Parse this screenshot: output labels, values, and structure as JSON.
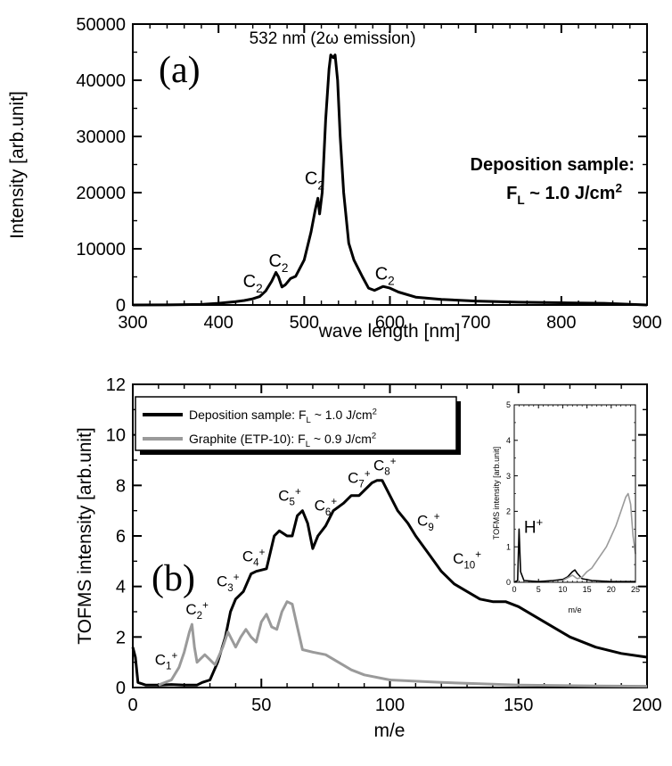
{
  "chart_data": [
    {
      "type": "line",
      "panel_label": "(a)",
      "xlabel": "wave length [nm]",
      "ylabel": "Intensity [arb.unit]",
      "xlim": [
        300,
        900
      ],
      "ylim": [
        0,
        50000
      ],
      "x_ticks": [
        300,
        400,
        500,
        600,
        700,
        800,
        900
      ],
      "y_ticks": [
        0,
        10000,
        20000,
        30000,
        40000,
        50000
      ],
      "grid": false,
      "series": [
        {
          "color": "#000000",
          "points": [
            [
              300,
              0
            ],
            [
              340,
              20
            ],
            [
              380,
              100
            ],
            [
              400,
              300
            ],
            [
              420,
              600
            ],
            [
              430,
              800
            ],
            [
              440,
              1100
            ],
            [
              448,
              1500
            ],
            [
              455,
              2500
            ],
            [
              462,
              4200
            ],
            [
              467,
              5800
            ],
            [
              470,
              5000
            ],
            [
              474,
              3200
            ],
            [
              478,
              3600
            ],
            [
              484,
              4700
            ],
            [
              490,
              5100
            ],
            [
              500,
              8000
            ],
            [
              508,
              13000
            ],
            [
              513,
              17000
            ],
            [
              516,
              19000
            ],
            [
              518,
              16200
            ],
            [
              521,
              20000
            ],
            [
              525,
              33000
            ],
            [
              529,
              42000
            ],
            [
              531,
              44500
            ],
            [
              534,
              44000
            ],
            [
              536,
              44500
            ],
            [
              539,
              40000
            ],
            [
              542,
              30000
            ],
            [
              546,
              20000
            ],
            [
              552,
              11000
            ],
            [
              558,
              8000
            ],
            [
              563,
              6500
            ],
            [
              568,
              5000
            ],
            [
              575,
              3000
            ],
            [
              582,
              2600
            ],
            [
              592,
              3300
            ],
            [
              600,
              3000
            ],
            [
              610,
              2300
            ],
            [
              630,
              1400
            ],
            [
              660,
              1000
            ],
            [
              700,
              700
            ],
            [
              750,
              500
            ],
            [
              800,
              400
            ],
            [
              850,
              300
            ],
            [
              900,
              0
            ]
          ]
        }
      ],
      "annotations": [
        {
          "text": "532 nm (2ω emission)",
          "x": 533,
          "y": 46500
        },
        {
          "text": "C",
          "sub": "2",
          "x": 440,
          "y": 3200
        },
        {
          "text": "C",
          "sub": "2",
          "x": 470,
          "y": 6800
        },
        {
          "text": "C",
          "sub": "2",
          "x": 512,
          "y": 21500
        },
        {
          "text": "C",
          "sub": "2",
          "x": 594,
          "y": 4500
        }
      ],
      "info_lines": [
        {
          "text": "Deposition sample:"
        },
        {
          "text": "F",
          "sub": "L",
          "rest": " ~ 1.0 J/cm",
          "sup": "2"
        }
      ]
    },
    {
      "type": "line",
      "panel_label": "(b)",
      "xlabel": "m/e",
      "ylabel": "TOFMS intensity [arb.unit]",
      "xlim": [
        0,
        200
      ],
      "ylim": [
        0,
        12
      ],
      "x_ticks": [
        0,
        50,
        100,
        150,
        200
      ],
      "y_ticks": [
        0,
        2,
        4,
        6,
        8,
        10,
        12
      ],
      "grid": false,
      "legend": {
        "placement": "top-left",
        "entries": [
          {
            "text": "Deposition sample: F",
            "sub": "L",
            "rest": " ~ 1.0 J/cm",
            "sup": "2",
            "color": "#000000"
          },
          {
            "text": "Graphite (ETP-10): F",
            "sub": "L",
            "rest": " ~ 0.9 J/cm",
            "sup": "2",
            "color": "#9a9a9a"
          }
        ]
      },
      "series": [
        {
          "color": "#000000",
          "points": [
            [
              0,
              1.6
            ],
            [
              1,
              1.2
            ],
            [
              2,
              0.2
            ],
            [
              5,
              0.1
            ],
            [
              10,
              0.1
            ],
            [
              15,
              0.12
            ],
            [
              20,
              0.1
            ],
            [
              25,
              0.1
            ],
            [
              27,
              0.2
            ],
            [
              30,
              0.3
            ],
            [
              33,
              1.0
            ],
            [
              36,
              2.0
            ],
            [
              38,
              3.0
            ],
            [
              40,
              3.5
            ],
            [
              43,
              3.8
            ],
            [
              46,
              4.5
            ],
            [
              48,
              4.6
            ],
            [
              52,
              4.7
            ],
            [
              55,
              6.0
            ],
            [
              57,
              6.2
            ],
            [
              60,
              6.0
            ],
            [
              62,
              6.0
            ],
            [
              64,
              6.8
            ],
            [
              66,
              7.0
            ],
            [
              68,
              6.5
            ],
            [
              70,
              5.5
            ],
            [
              72,
              6.0
            ],
            [
              75,
              6.4
            ],
            [
              78,
              7.0
            ],
            [
              82,
              7.3
            ],
            [
              85,
              7.6
            ],
            [
              88,
              7.6
            ],
            [
              90,
              7.8
            ],
            [
              93,
              8.1
            ],
            [
              95,
              8.2
            ],
            [
              97,
              8.2
            ],
            [
              100,
              7.6
            ],
            [
              103,
              7.0
            ],
            [
              107,
              6.5
            ],
            [
              110,
              6.0
            ],
            [
              115,
              5.3
            ],
            [
              120,
              4.6
            ],
            [
              125,
              4.1
            ],
            [
              130,
              3.8
            ],
            [
              135,
              3.5
            ],
            [
              140,
              3.4
            ],
            [
              145,
              3.4
            ],
            [
              150,
              3.2
            ],
            [
              160,
              2.6
            ],
            [
              170,
              2.0
            ],
            [
              180,
              1.6
            ],
            [
              190,
              1.35
            ],
            [
              200,
              1.2
            ]
          ]
        },
        {
          "color": "#9a9a9a",
          "points": [
            [
              10,
              0.1
            ],
            [
              15,
              0.3
            ],
            [
              18,
              0.8
            ],
            [
              20,
              1.4
            ],
            [
              22,
              2.2
            ],
            [
              23,
              2.5
            ],
            [
              24,
              1.6
            ],
            [
              25,
              1.0
            ],
            [
              26,
              1.1
            ],
            [
              28,
              1.3
            ],
            [
              30,
              1.1
            ],
            [
              32,
              0.9
            ],
            [
              35,
              1.6
            ],
            [
              37,
              2.2
            ],
            [
              39,
              1.8
            ],
            [
              40,
              1.6
            ],
            [
              42,
              2.0
            ],
            [
              44,
              2.3
            ],
            [
              46,
              2.0
            ],
            [
              48,
              1.8
            ],
            [
              50,
              2.6
            ],
            [
              52,
              2.9
            ],
            [
              54,
              2.4
            ],
            [
              56,
              2.3
            ],
            [
              58,
              3.0
            ],
            [
              60,
              3.4
            ],
            [
              62,
              3.3
            ],
            [
              64,
              2.4
            ],
            [
              66,
              1.5
            ],
            [
              70,
              1.4
            ],
            [
              75,
              1.3
            ],
            [
              80,
              1.0
            ],
            [
              85,
              0.7
            ],
            [
              90,
              0.5
            ],
            [
              100,
              0.3
            ],
            [
              120,
              0.2
            ],
            [
              150,
              0.1
            ],
            [
              180,
              0.06
            ],
            [
              200,
              0.05
            ]
          ]
        }
      ],
      "annotations": [
        {
          "text": "C",
          "sub": "1",
          "sup": "+",
          "x": 13,
          "y": 0.9
        },
        {
          "text": "C",
          "sub": "2",
          "sup": "+",
          "x": 25,
          "y": 2.9
        },
        {
          "text": "C",
          "sub": "3",
          "sup": "+",
          "x": 37,
          "y": 4.0
        },
        {
          "text": "C",
          "sub": "4",
          "sup": "+",
          "x": 47,
          "y": 5.0
        },
        {
          "text": "C",
          "sub": "5",
          "sup": "+",
          "x": 61,
          "y": 7.4
        },
        {
          "text": "C",
          "sub": "6",
          "sup": "+",
          "x": 75,
          "y": 7.0
        },
        {
          "text": "C",
          "sub": "7",
          "sup": "+",
          "x": 88,
          "y": 8.1
        },
        {
          "text": "C",
          "sub": "8",
          "sup": "+",
          "x": 98,
          "y": 8.6
        },
        {
          "text": "C",
          "sub": "9",
          "sup": "+",
          "x": 115,
          "y": 6.4
        },
        {
          "text": "C",
          "sub": "10",
          "sup": "+",
          "x": 130,
          "y": 4.9
        }
      ],
      "inset": {
        "type": "line",
        "xlabel": "m/e",
        "ylabel": "TOFMS intensity [arb.unit]",
        "xlim": [
          0,
          25
        ],
        "ylim": [
          0,
          5
        ],
        "x_ticks": [
          0,
          5,
          10,
          15,
          20,
          25
        ],
        "y_ticks": [
          0,
          1,
          2,
          3,
          4,
          5
        ],
        "annotations": [
          {
            "text": "H",
            "sup": "+",
            "x": 2,
            "y": 1.4
          }
        ],
        "series": [
          {
            "color": "#000000",
            "points": [
              [
                0,
                0
              ],
              [
                0.7,
                0.05
              ],
              [
                1,
                1.5
              ],
              [
                1.3,
                0.3
              ],
              [
                2,
                0.05
              ],
              [
                5,
                0.02
              ],
              [
                8,
                0.05
              ],
              [
                10,
                0.08
              ],
              [
                11,
                0.15
              ],
              [
                12,
                0.3
              ],
              [
                12.5,
                0.35
              ],
              [
                13,
                0.25
              ],
              [
                14,
                0.1
              ],
              [
                16,
                0.05
              ],
              [
                20,
                0.02
              ],
              [
                25,
                0.02
              ]
            ]
          },
          {
            "color": "#9a9a9a",
            "points": [
              [
                10,
                0.05
              ],
              [
                12,
                0.2
              ],
              [
                13,
                0.1
              ],
              [
                14,
                0.15
              ],
              [
                15,
                0.3
              ],
              [
                16,
                0.4
              ],
              [
                17,
                0.6
              ],
              [
                18,
                0.8
              ],
              [
                19,
                1.0
              ],
              [
                20,
                1.3
              ],
              [
                21,
                1.6
              ],
              [
                22,
                2.0
              ],
              [
                23,
                2.4
              ],
              [
                23.5,
                2.5
              ],
              [
                24,
                2.2
              ],
              [
                24.5,
                1.3
              ],
              [
                25,
                0.8
              ]
            ]
          }
        ]
      }
    }
  ]
}
